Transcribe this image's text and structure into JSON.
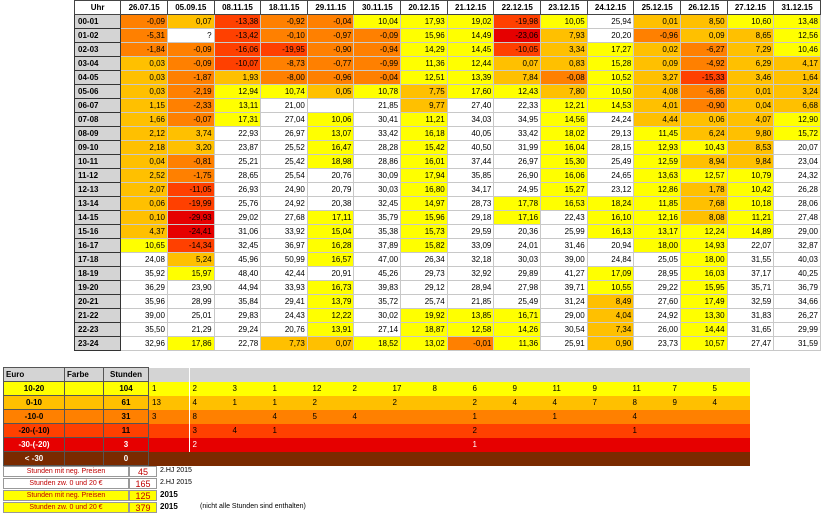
{
  "colors": {
    "white": "#ffffff",
    "yellow": "#ffff00",
    "orange_light": "#ffc000",
    "orange": "#ff8000",
    "orange_red": "#ff4000",
    "red": "#e60000",
    "dark_red": "#b00000",
    "brown": "#7a2a00",
    "label_gray": "#d4d4d4"
  },
  "main": {
    "hour_header": "Uhr",
    "dates": [
      "26.07.15",
      "05.09.15",
      "08.11.15",
      "18.11.15",
      "29.11.15",
      "30.11.15",
      "20.12.15",
      "21.12.15",
      "22.12.15",
      "23.12.15",
      "24.12.15",
      "25.12.15",
      "26.12.15",
      "27.12.15",
      "31.12.15"
    ],
    "rows": [
      {
        "hour": "00-01",
        "values": [
          "-0,09",
          "0,07",
          "-13,38",
          "-0,92",
          "-0,04",
          "10,04",
          "17,93",
          "19,02",
          "-19,98",
          "10,05",
          "25,94",
          "0,01",
          "8,50",
          "10,60",
          "13,48"
        ]
      },
      {
        "hour": "01-02",
        "values": [
          "-5,31",
          "?",
          "-13,42",
          "-0,10",
          "-0,97",
          "-0,09",
          "15,96",
          "14,49",
          "-23,06",
          "7,93",
          "20,20",
          "-0,96",
          "0,09",
          "8,65",
          "12,56"
        ]
      },
      {
        "hour": "02-03",
        "values": [
          "-1,84",
          "-0,09",
          "-16,06",
          "-19,95",
          "-0,90",
          "-0,94",
          "14,29",
          "14,45",
          "-10,05",
          "3,34",
          "17,27",
          "0,02",
          "-6,27",
          "7,29",
          "10,46"
        ]
      },
      {
        "hour": "03-04",
        "values": [
          "0,03",
          "-0,09",
          "-10,07",
          "-8,73",
          "-0,77",
          "-0,99",
          "11,36",
          "12,44",
          "0,07",
          "0,83",
          "15,28",
          "0,09",
          "-4,92",
          "6,29",
          "4,17"
        ]
      },
      {
        "hour": "04-05",
        "values": [
          "0,03",
          "-1,87",
          "1,93",
          "-8,00",
          "-0,96",
          "-0,04",
          "12,51",
          "13,39",
          "7,84",
          "-0,08",
          "10,52",
          "3,27",
          "-15,33",
          "3,46",
          "1,64"
        ]
      },
      {
        "hour": "05-06",
        "values": [
          "0,03",
          "-2,19",
          "12,94",
          "10,74",
          "0,05",
          "10,78",
          "7,75",
          "17,60",
          "12,43",
          "7,80",
          "10,50",
          "4,08",
          "-6,86",
          "0,01",
          "3,24"
        ]
      },
      {
        "hour": "06-07",
        "values": [
          "1,15",
          "-2,33",
          "13,11",
          "21,00",
          "",
          "21,85",
          "9,77",
          "27,40",
          "22,33",
          "12,21",
          "14,53",
          "4,01",
          "-0,90",
          "0,04",
          "6,68"
        ]
      },
      {
        "hour": "07-08",
        "values": [
          "1,66",
          "-0,07",
          "17,31",
          "27,04",
          "10,06",
          "30,41",
          "11,21",
          "34,03",
          "34,95",
          "14,56",
          "24,24",
          "4,44",
          "0,06",
          "4,07",
          "12,90"
        ]
      },
      {
        "hour": "08-09",
        "values": [
          "2,12",
          "3,74",
          "22,93",
          "26,97",
          "13,07",
          "33,42",
          "16,18",
          "40,05",
          "33,42",
          "18,02",
          "29,13",
          "11,45",
          "6,24",
          "9,80",
          "15,72"
        ]
      },
      {
        "hour": "09-10",
        "values": [
          "2,18",
          "3,20",
          "23,87",
          "25,52",
          "16,47",
          "28,28",
          "15,42",
          "40,50",
          "31,99",
          "16,04",
          "28,15",
          "12,93",
          "10,43",
          "8,53",
          "20,07"
        ]
      },
      {
        "hour": "10-11",
        "values": [
          "0,04",
          "-0,81",
          "25,21",
          "25,42",
          "18,98",
          "28,86",
          "16,01",
          "37,44",
          "26,97",
          "15,30",
          "25,49",
          "12,59",
          "8,94",
          "9,84",
          "23,04"
        ]
      },
      {
        "hour": "11-12",
        "values": [
          "2,52",
          "-1,75",
          "28,65",
          "25,54",
          "20,76",
          "30,09",
          "17,94",
          "35,85",
          "26,90",
          "16,06",
          "24,65",
          "13,63",
          "12,57",
          "10,79",
          "24,32"
        ]
      },
      {
        "hour": "12-13",
        "values": [
          "2,07",
          "-11,05",
          "26,93",
          "24,90",
          "20,79",
          "30,03",
          "16,80",
          "34,17",
          "24,95",
          "15,27",
          "23,12",
          "12,86",
          "1,78",
          "10,42",
          "26,28"
        ]
      },
      {
        "hour": "13-14",
        "values": [
          "0,06",
          "-19,99",
          "25,76",
          "24,92",
          "20,38",
          "32,45",
          "14,97",
          "28,73",
          "17,78",
          "16,53",
          "18,24",
          "11,85",
          "7,68",
          "10,18",
          "28,06"
        ]
      },
      {
        "hour": "14-15",
        "values": [
          "0,10",
          "-29,93",
          "29,02",
          "27,68",
          "17,11",
          "35,79",
          "15,96",
          "29,18",
          "17,16",
          "22,43",
          "16,10",
          "12,16",
          "8,08",
          "11,21",
          "27,48"
        ]
      },
      {
        "hour": "15-16",
        "values": [
          "4,37",
          "-24,41",
          "31,06",
          "33,92",
          "15,04",
          "35,38",
          "15,73",
          "29,59",
          "20,36",
          "25,99",
          "16,13",
          "13,17",
          "12,24",
          "14,89",
          "29,00"
        ]
      },
      {
        "hour": "16-17",
        "values": [
          "10,65",
          "-14,34",
          "32,45",
          "36,97",
          "16,28",
          "37,89",
          "15,82",
          "33,09",
          "24,01",
          "31,46",
          "20,94",
          "18,00",
          "14,93",
          "22,07",
          "32,87"
        ]
      },
      {
        "hour": "17-18",
        "values": [
          "24,08",
          "5,24",
          "45,96",
          "50,99",
          "16,57",
          "47,00",
          "26,34",
          "32,18",
          "30,03",
          "39,00",
          "24,84",
          "25,05",
          "18,00",
          "31,55",
          "40,03"
        ]
      },
      {
        "hour": "18-19",
        "values": [
          "35,92",
          "15,97",
          "48,40",
          "42,44",
          "20,91",
          "45,26",
          "29,73",
          "32,92",
          "29,89",
          "41,27",
          "17,09",
          "28,95",
          "16,03",
          "37,17",
          "40,25"
        ]
      },
      {
        "hour": "19-20",
        "values": [
          "36,29",
          "23,90",
          "44,94",
          "33,93",
          "16,73",
          "39,83",
          "29,12",
          "28,94",
          "27,98",
          "39,71",
          "10,55",
          "29,22",
          "15,95",
          "35,71",
          "36,79"
        ]
      },
      {
        "hour": "20-21",
        "values": [
          "35,96",
          "28,99",
          "35,84",
          "29,41",
          "13,79",
          "35,72",
          "25,74",
          "21,85",
          "25,49",
          "31,24",
          "8,49",
          "27,60",
          "17,49",
          "32,59",
          "34,66"
        ]
      },
      {
        "hour": "21-22",
        "values": [
          "39,00",
          "25,01",
          "29,83",
          "24,43",
          "12,22",
          "30,02",
          "19,92",
          "13,85",
          "16,71",
          "29,00",
          "4,04",
          "24,92",
          "13,30",
          "31,83",
          "26,27"
        ]
      },
      {
        "hour": "22-23",
        "values": [
          "35,50",
          "21,29",
          "29,24",
          "20,76",
          "13,91",
          "27,14",
          "18,87",
          "12,58",
          "14,26",
          "30,54",
          "7,34",
          "26,00",
          "14,44",
          "31,65",
          "29,99"
        ]
      },
      {
        "hour": "23-24",
        "values": [
          "32,96",
          "17,86",
          "22,78",
          "7,73",
          "0,07",
          "18,52",
          "13,02",
          "-0,01",
          "11,36",
          "25,91",
          "0,90",
          "23,73",
          "10,57",
          "27,47",
          "31,59"
        ]
      }
    ]
  },
  "summary": {
    "headers": {
      "euro": "Euro",
      "farbe": "Farbe",
      "stunden": "Stunden"
    },
    "rows": [
      {
        "range": "10-20",
        "total": "104",
        "counts": [
          "1",
          "2",
          "3",
          "1",
          "12",
          "2",
          "17",
          "8",
          "6",
          "9",
          "11",
          "9",
          "11",
          "7",
          "5"
        ]
      },
      {
        "range": "0-10",
        "total": "61",
        "counts": [
          "13",
          "4",
          "1",
          "1",
          "2",
          "",
          "2",
          "",
          "2",
          "4",
          "4",
          "7",
          "8",
          "9",
          "4"
        ]
      },
      {
        "range": "-10-0",
        "total": "31",
        "counts": [
          "3",
          "8",
          "",
          "4",
          "5",
          "4",
          "",
          "",
          "1",
          "",
          "1",
          "",
          "4",
          "",
          ""
        ]
      },
      {
        "range": "-20-(-10)",
        "total": "11",
        "counts": [
          "",
          "3",
          "4",
          "1",
          "",
          "",
          "",
          "",
          "2",
          "",
          "",
          "",
          "1",
          "",
          ""
        ]
      },
      {
        "range": "-30-(-20)",
        "total": "3",
        "counts": [
          "",
          "2",
          "",
          "",
          "",
          "",
          "",
          "",
          "1",
          "",
          "",
          "",
          "",
          "",
          ""
        ]
      },
      {
        "range": "< -30",
        "total": "0",
        "counts": [
          "",
          "",
          "",
          "",
          "",
          "",
          "",
          "",
          "",
          "",
          "",
          "",
          "",
          "",
          ""
        ]
      }
    ],
    "footer": [
      {
        "label": "Stunden mit neg. Preisen",
        "value": "45",
        "text": "2.HJ 2015",
        "note": ""
      },
      {
        "label": "Stunden zw. 0 und 20 €",
        "value": "165",
        "text": "2.HJ 2015",
        "note": ""
      },
      {
        "label": "Stunden mit neg. Preisen",
        "value": "125",
        "text": "2015",
        "note": ""
      },
      {
        "label": "Stunden zw. 0 und 20 €",
        "value": "379",
        "text": "2015",
        "note": "(nicht alle Stunden sind enthalten)"
      }
    ]
  }
}
